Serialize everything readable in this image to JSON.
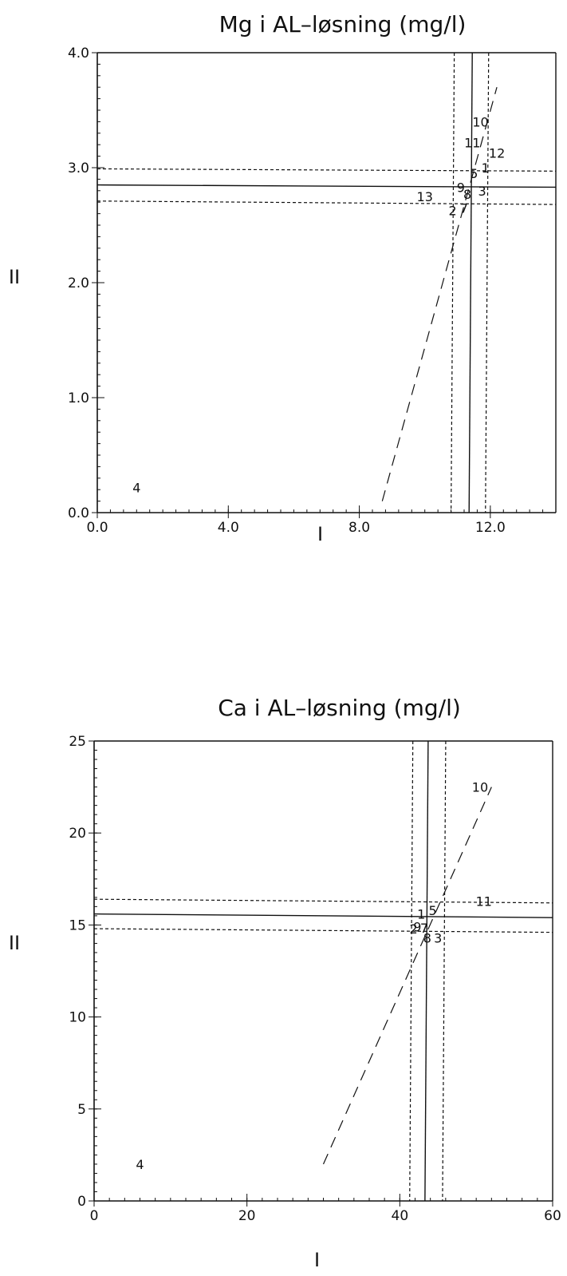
{
  "chart_data": [
    {
      "type": "scatter",
      "title": "Mg i AL–løsning (mg/l)",
      "xlabel": "I",
      "ylabel": "II",
      "xlim": [
        0,
        14
      ],
      "ylim": [
        0,
        4
      ],
      "xticks": [
        0,
        4,
        8,
        12
      ],
      "xtick_labels": [
        "0.0",
        "4.0",
        "8.0",
        "12.0"
      ],
      "yticks": [
        0,
        1,
        2,
        3,
        4
      ],
      "ytick_labels": [
        "0.0",
        "1.0",
        "2.0",
        "3.0",
        "4.0"
      ],
      "minor_x": 0.4,
      "minor_y": 0.1,
      "mean_x": 11.4,
      "mean_x_band": [
        10.85,
        11.9
      ],
      "mean_y": [
        2.85,
        2.83
      ],
      "mean_y_band": [
        [
          2.99,
          2.97
        ],
        [
          2.71,
          2.68
        ]
      ],
      "diagonal": {
        "x": [
          8.7,
          12.2
        ],
        "y": [
          0.1,
          3.7
        ]
      },
      "points": [
        {
          "label": "10",
          "x": 11.7,
          "y": 3.4
        },
        {
          "label": "11",
          "x": 11.45,
          "y": 3.22
        },
        {
          "label": "12",
          "x": 12.2,
          "y": 3.13
        },
        {
          "label": "5",
          "x": 11.5,
          "y": 2.95
        },
        {
          "label": "1",
          "x": 11.85,
          "y": 3.0
        },
        {
          "label": "9",
          "x": 11.1,
          "y": 2.83
        },
        {
          "label": "8",
          "x": 11.3,
          "y": 2.77
        },
        {
          "label": "3",
          "x": 11.75,
          "y": 2.8
        },
        {
          "label": "13",
          "x": 10.0,
          "y": 2.75
        },
        {
          "label": "2",
          "x": 10.85,
          "y": 2.63
        },
        {
          "label": "7",
          "x": 11.2,
          "y": 2.65
        },
        {
          "label": "4",
          "x": 1.2,
          "y": 0.22
        }
      ]
    },
    {
      "type": "scatter",
      "title": "Ca i AL–løsning (mg/l)",
      "xlabel": "I",
      "ylabel": "II",
      "xlim": [
        0,
        60
      ],
      "ylim": [
        0,
        25
      ],
      "xticks": [
        0,
        20,
        40,
        60
      ],
      "xtick_labels": [
        "0",
        "20",
        "40",
        "60"
      ],
      "yticks": [
        0,
        5,
        10,
        15,
        20,
        25
      ],
      "ytick_labels": [
        "0",
        "5",
        "10",
        "15",
        "20",
        "25"
      ],
      "minor_x": 2,
      "minor_y": 0.5,
      "mean_x": 43.5,
      "mean_x_band": [
        41.5,
        45.8
      ],
      "mean_y": [
        15.6,
        15.4
      ],
      "mean_y_band": [
        [
          16.4,
          16.2
        ],
        [
          14.8,
          14.6
        ]
      ],
      "diagonal": {
        "x": [
          30.0,
          52.0
        ],
        "y": [
          2.0,
          22.5
        ]
      },
      "points": [
        {
          "label": "10",
          "x": 50.5,
          "y": 22.5
        },
        {
          "label": "11",
          "x": 51.0,
          "y": 16.3
        },
        {
          "label": "1",
          "x": 42.8,
          "y": 15.6
        },
        {
          "label": "5",
          "x": 44.3,
          "y": 15.8
        },
        {
          "label": "2",
          "x": 41.8,
          "y": 14.8
        },
        {
          "label": "9",
          "x": 42.3,
          "y": 14.9
        },
        {
          "label": "7",
          "x": 43.2,
          "y": 14.85
        },
        {
          "label": "8",
          "x": 43.6,
          "y": 14.3
        },
        {
          "label": "3",
          "x": 45.0,
          "y": 14.3
        },
        {
          "label": "4",
          "x": 6.0,
          "y": 2.0
        }
      ]
    }
  ]
}
